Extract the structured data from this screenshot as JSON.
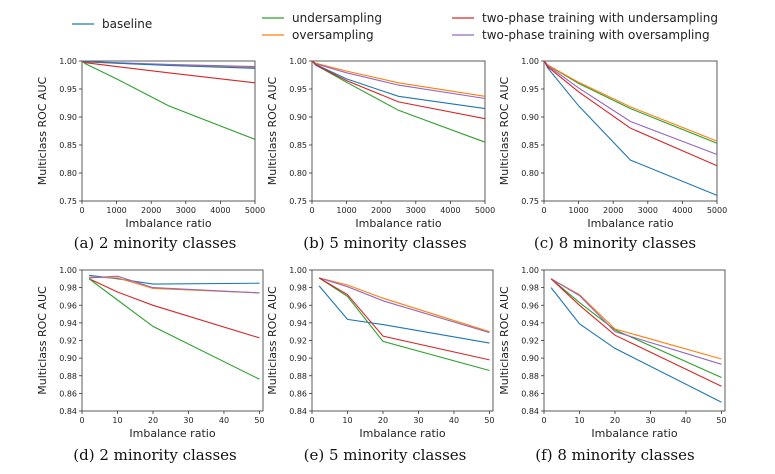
{
  "legend": [
    {
      "key": "baseline",
      "label": "baseline",
      "color": "#1f77b4"
    },
    {
      "key": "undersampling",
      "label": "undersampling",
      "color": "#2ca02c"
    },
    {
      "key": "oversampling",
      "label": "oversampling",
      "color": "#ff7f0e"
    },
    {
      "key": "two_phase_under",
      "label": "two-phase training with undersampling",
      "color": "#d62728"
    },
    {
      "key": "two_phase_over",
      "label": "two-phase training with oversampling",
      "color": "#9467bd"
    }
  ],
  "chart_data": [
    {
      "type": "line",
      "caption": "(a) 2 minority classes",
      "xlabel": "Imbalance ratio",
      "ylabel": "Multiclass ROC AUC",
      "xlim": [
        0,
        5000
      ],
      "ylim": [
        0.75,
        1.0
      ],
      "xticks": [
        0,
        1000,
        2000,
        3000,
        4000,
        5000
      ],
      "yticks": [
        0.75,
        0.8,
        0.85,
        0.9,
        0.95,
        1.0
      ],
      "x": [
        10,
        100,
        1000,
        2500,
        5000
      ],
      "series": [
        {
          "key": "undersampling",
          "values": [
            0.999,
            0.995,
            0.968,
            0.92,
            0.86
          ]
        },
        {
          "key": "oversampling",
          "values": [
            1.0,
            0.998,
            0.996,
            0.993,
            0.988
          ]
        },
        {
          "key": "two_phase_over",
          "values": [
            1.0,
            0.999,
            0.997,
            0.994,
            0.99
          ]
        },
        {
          "key": "baseline",
          "values": [
            1.0,
            0.999,
            0.996,
            0.992,
            0.987
          ]
        },
        {
          "key": "two_phase_under",
          "values": [
            1.0,
            0.997,
            0.99,
            0.979,
            0.961
          ]
        }
      ]
    },
    {
      "type": "line",
      "caption": "(b) 5 minority classes",
      "xlabel": "Imbalance ratio",
      "ylabel": "Multiclass ROC AUC",
      "xlim": [
        0,
        5000
      ],
      "ylim": [
        0.75,
        1.0
      ],
      "xticks": [
        0,
        1000,
        2000,
        3000,
        4000,
        5000
      ],
      "yticks": [
        0.75,
        0.8,
        0.85,
        0.9,
        0.95,
        1.0
      ],
      "x": [
        10,
        100,
        1000,
        2500,
        5000
      ],
      "series": [
        {
          "key": "undersampling",
          "values": [
            1.0,
            0.993,
            0.962,
            0.912,
            0.855
          ]
        },
        {
          "key": "oversampling",
          "values": [
            1.0,
            0.996,
            0.982,
            0.961,
            0.937
          ]
        },
        {
          "key": "two_phase_over",
          "values": [
            1.0,
            0.995,
            0.979,
            0.957,
            0.933
          ]
        },
        {
          "key": "baseline",
          "values": [
            1.0,
            0.994,
            0.968,
            0.937,
            0.915
          ]
        },
        {
          "key": "two_phase_under",
          "values": [
            1.0,
            0.993,
            0.965,
            0.927,
            0.897
          ]
        }
      ]
    },
    {
      "type": "line",
      "caption": "(c) 8 minority classes",
      "xlabel": "Imbalance ratio",
      "ylabel": "Multiclass ROC AUC",
      "xlim": [
        0,
        5000
      ],
      "ylim": [
        0.75,
        1.0
      ],
      "xticks": [
        0,
        1000,
        2000,
        3000,
        4000,
        5000
      ],
      "yticks": [
        0.75,
        0.8,
        0.85,
        0.9,
        0.95,
        1.0
      ],
      "x": [
        10,
        100,
        1000,
        2500,
        5000
      ],
      "series": [
        {
          "key": "baseline",
          "values": [
            1.0,
            0.988,
            0.92,
            0.823,
            0.76
          ]
        },
        {
          "key": "undersampling",
          "values": [
            1.0,
            0.993,
            0.96,
            0.915,
            0.853
          ]
        },
        {
          "key": "oversampling",
          "values": [
            1.0,
            0.993,
            0.962,
            0.918,
            0.857
          ]
        },
        {
          "key": "two_phase_over",
          "values": [
            1.0,
            0.992,
            0.952,
            0.892,
            0.833
          ]
        },
        {
          "key": "two_phase_under",
          "values": [
            1.0,
            0.99,
            0.945,
            0.88,
            0.813
          ]
        }
      ]
    },
    {
      "type": "line",
      "caption": "(d) 2 minority classes",
      "xlabel": "Imbalance ratio",
      "ylabel": "Multiclass ROC AUC",
      "xlim": [
        0,
        51
      ],
      "ylim": [
        0.84,
        1.0
      ],
      "xticks": [
        0,
        10,
        20,
        30,
        40,
        50
      ],
      "yticks": [
        0.84,
        0.86,
        0.88,
        0.9,
        0.92,
        0.94,
        0.96,
        0.98,
        1.0
      ],
      "x": [
        2,
        10,
        20,
        50
      ],
      "series": [
        {
          "key": "baseline",
          "values": [
            0.994,
            0.99,
            0.984,
            0.985
          ]
        },
        {
          "key": "oversampling",
          "values": [
            0.992,
            0.991,
            0.979,
            0.974
          ]
        },
        {
          "key": "two_phase_over",
          "values": [
            0.991,
            0.993,
            0.98,
            0.974
          ]
        },
        {
          "key": "two_phase_under",
          "values": [
            0.99,
            0.975,
            0.96,
            0.923
          ]
        },
        {
          "key": "undersampling",
          "values": [
            0.99,
            0.966,
            0.936,
            0.876
          ]
        }
      ]
    },
    {
      "type": "line",
      "caption": "(e) 5 minority classes",
      "xlabel": "Imbalance ratio",
      "ylabel": "Multiclass ROC AUC",
      "xlim": [
        0,
        51
      ],
      "ylim": [
        0.84,
        1.0
      ],
      "xticks": [
        0,
        10,
        20,
        30,
        40,
        50
      ],
      "yticks": [
        0.84,
        0.86,
        0.88,
        0.9,
        0.92,
        0.94,
        0.96,
        0.98,
        1.0
      ],
      "x": [
        2,
        10,
        20,
        50
      ],
      "series": [
        {
          "key": "baseline",
          "values": [
            0.982,
            0.944,
            0.938,
            0.917
          ]
        },
        {
          "key": "oversampling",
          "values": [
            0.991,
            0.983,
            0.968,
            0.93
          ]
        },
        {
          "key": "two_phase_over",
          "values": [
            0.991,
            0.981,
            0.965,
            0.929
          ]
        },
        {
          "key": "undersampling",
          "values": [
            0.991,
            0.97,
            0.919,
            0.886
          ]
        },
        {
          "key": "two_phase_under",
          "values": [
            0.991,
            0.972,
            0.925,
            0.898
          ]
        }
      ]
    },
    {
      "type": "line",
      "caption": "(f) 8 minority classes",
      "xlabel": "Imbalance ratio",
      "ylabel": "Multiclass ROC AUC",
      "xlim": [
        0,
        51
      ],
      "ylim": [
        0.84,
        1.0
      ],
      "xticks": [
        0,
        10,
        20,
        30,
        40,
        50
      ],
      "yticks": [
        0.84,
        0.86,
        0.88,
        0.9,
        0.92,
        0.94,
        0.96,
        0.98,
        1.0
      ],
      "x": [
        2,
        10,
        20,
        50
      ],
      "series": [
        {
          "key": "baseline",
          "values": [
            0.98,
            0.939,
            0.911,
            0.85
          ]
        },
        {
          "key": "undersampling",
          "values": [
            0.99,
            0.963,
            0.932,
            0.878
          ]
        },
        {
          "key": "oversampling",
          "values": [
            0.99,
            0.972,
            0.933,
            0.899
          ]
        },
        {
          "key": "two_phase_over",
          "values": [
            0.99,
            0.971,
            0.93,
            0.893
          ]
        },
        {
          "key": "two_phase_under",
          "values": [
            0.99,
            0.96,
            0.926,
            0.868
          ]
        }
      ]
    }
  ]
}
